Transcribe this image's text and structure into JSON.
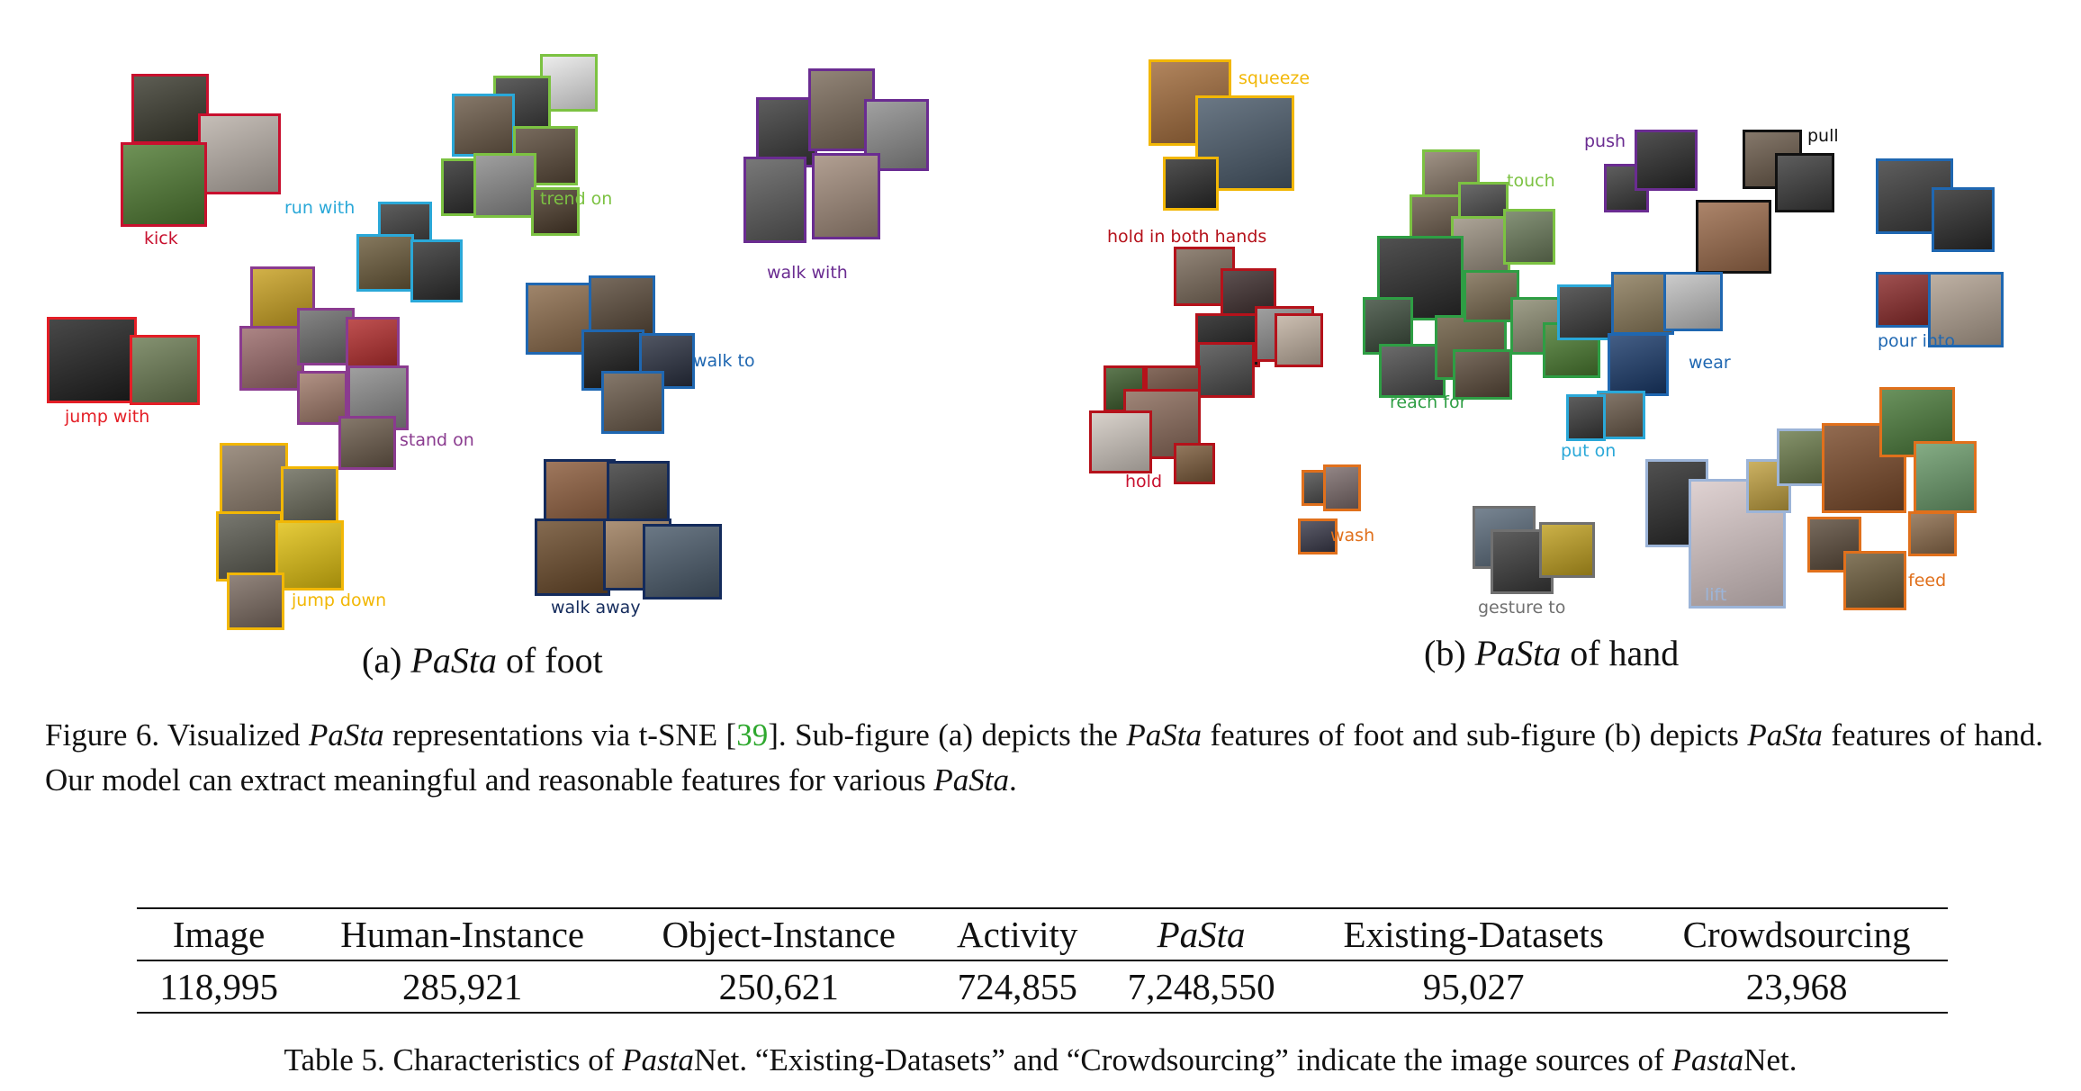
{
  "figure": {
    "panel_a": {
      "subcaption_prefix": "(a) ",
      "subcaption_italic": "PaSta",
      "subcaption_suffix": " of foot",
      "labels": [
        {
          "id": "kick",
          "text": "kick",
          "color": "#c8102e"
        },
        {
          "id": "run-with",
          "text": "run with",
          "color": "#2aa8d8"
        },
        {
          "id": "trend-on",
          "text": "trend on",
          "color": "#7cc242"
        },
        {
          "id": "walk-with",
          "text": "walk with",
          "color": "#6a2c91"
        },
        {
          "id": "jump-with",
          "text": "jump with",
          "color": "#e41e26"
        },
        {
          "id": "walk-to",
          "text": "walk to",
          "color": "#1f67b1"
        },
        {
          "id": "stand-on",
          "text": "stand on",
          "color": "#8a3b8f"
        },
        {
          "id": "jump-down",
          "text": "jump down",
          "color": "#f2b705"
        },
        {
          "id": "walk-away",
          "text": "walk away",
          "color": "#142b5c"
        }
      ]
    },
    "panel_b": {
      "subcaption_prefix": "(b) ",
      "subcaption_italic": "PaSta",
      "subcaption_suffix": " of hand",
      "labels": [
        {
          "id": "squeeze",
          "text": "squeeze",
          "color": "#f2b705"
        },
        {
          "id": "push",
          "text": "push",
          "color": "#6a2c91"
        },
        {
          "id": "pull",
          "text": "pull",
          "color": "#111111"
        },
        {
          "id": "touch",
          "text": "touch",
          "color": "#7cc242"
        },
        {
          "id": "hold-in-both-hands",
          "text": "hold in both hands",
          "color": "#b5121b"
        },
        {
          "id": "wear",
          "text": "wear",
          "color": "#1f67b1"
        },
        {
          "id": "pour-into",
          "text": "pour into",
          "color": "#1f67b1"
        },
        {
          "id": "reach-for",
          "text": "reach for",
          "color": "#2e9e44"
        },
        {
          "id": "put-on",
          "text": "put on",
          "color": "#2aa8d8"
        },
        {
          "id": "hold",
          "text": "hold",
          "color": "#c8102e"
        },
        {
          "id": "wash",
          "text": "wash",
          "color": "#e0701c"
        },
        {
          "id": "lift",
          "text": "lift",
          "color": "#9cb4d8"
        },
        {
          "id": "feed",
          "text": "feed",
          "color": "#e0701c"
        },
        {
          "id": "gesture-to",
          "text": "gesture to",
          "color": "#707070"
        }
      ]
    },
    "caption": {
      "t1": "Figure 6. Visualized ",
      "i1": "PaSta",
      "t2": " representations via t-SNE [",
      "cite": "39",
      "t3": "]. Sub-figure (a) depicts the ",
      "i2": "PaSta",
      "t4": " features of foot and sub-figure (b) depicts ",
      "i3": "PaSta",
      "t5": " features of hand. Our model can extract meaningful and reasonable features for various ",
      "i4": "PaSta",
      "t6": "."
    }
  },
  "table": {
    "headers": [
      "Image",
      "Human-Instance",
      "Object-Instance",
      "Activity",
      "PaSta",
      "Existing-Datasets",
      "Crowdsourcing"
    ],
    "values": [
      "118,995",
      "285,921",
      "250,621",
      "724,855",
      "7,248,550",
      "95,027",
      "23,968"
    ],
    "caption": {
      "t1": "Table 5. Characteristics of ",
      "i1": "Pasta",
      "t2": "Net. “Existing-Datasets” and “Crowdsourcing” indicate the image sources of ",
      "i2": "Pasta",
      "t3": "Net."
    }
  }
}
